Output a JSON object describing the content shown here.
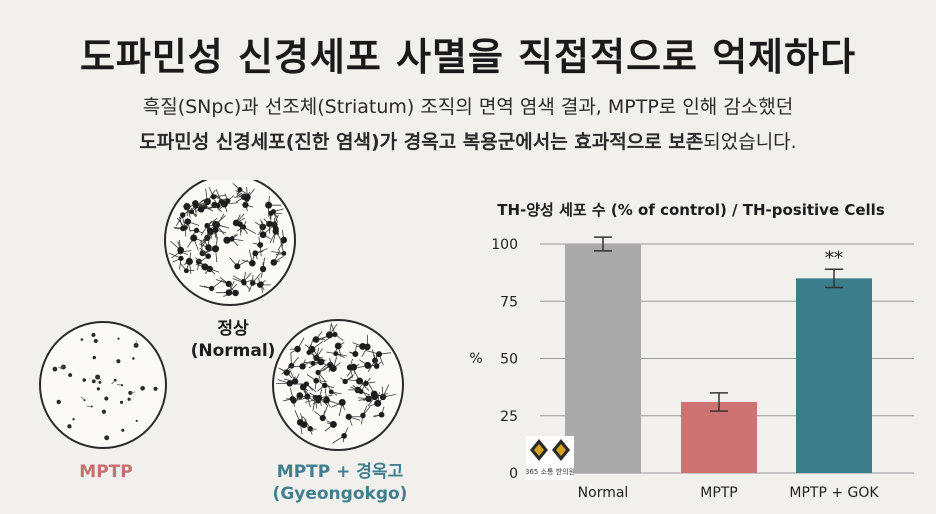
{
  "header": {
    "title": "도파민성 신경세포 사멸을 직접적으로 억제하다",
    "subtitle_line1": "흑질(SNpc)과 선조체(Striatum) 조직의 면역 염색 결과, MPTP로 인해 감소했던",
    "subtitle_line2_bold1": "도파민성 신경세포(진한 염색)가 경옥고 복용군에서는 효과적으로 보존",
    "subtitle_line2_rest": "되었습니다."
  },
  "illustration": {
    "normal_label_ko": "정상",
    "normal_label_en": "(Normal)",
    "mptp_label": "MPTP",
    "gok_label_ko": "MPTP + 경옥고",
    "gok_label_en": "(Gyeongokgo)"
  },
  "logo": {
    "text": "365 소통 한의원"
  },
  "chart_data": {
    "type": "bar",
    "title": "TH-양성 세포 수 (% of control) / TH-positive Cells",
    "ylabel": "%",
    "categories": [
      "Normal",
      "MPTP",
      "MPTP + GOK"
    ],
    "values": [
      100,
      31,
      85
    ],
    "errors": [
      3,
      4,
      4
    ],
    "colors": [
      "#a9a9a9",
      "#cd7372",
      "#3c7d8b"
    ],
    "annotations": [
      {
        "category": "MPTP + GOK",
        "text": "**"
      }
    ],
    "ylim": [
      0,
      100
    ],
    "yticks": [
      0,
      25,
      50,
      75,
      100
    ],
    "grid": true
  }
}
